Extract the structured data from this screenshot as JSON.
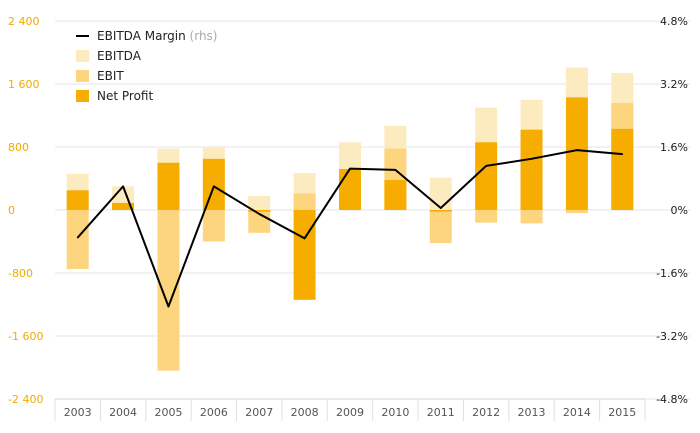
{
  "chart_data": {
    "type": "bar",
    "categories": [
      "2003",
      "2004",
      "2005",
      "2006",
      "2007",
      "2008",
      "2009",
      "2010",
      "2011",
      "2012",
      "2013",
      "2014",
      "2015"
    ],
    "y_left": {
      "ticks": [
        2400,
        1600,
        800,
        0,
        -800,
        -1600,
        -2400
      ],
      "tick_labels": [
        "2 400",
        "1 600",
        "800",
        "0",
        "-800",
        "-1 600",
        "-2 400"
      ],
      "range": [
        -2400,
        2400
      ]
    },
    "y_right": {
      "ticks": [
        4.8,
        3.2,
        1.6,
        0,
        -1.6,
        -3.2,
        -4.8
      ],
      "tick_labels": [
        "4.8%",
        "3.2%",
        "1.6%",
        "0%",
        "-1.6%",
        "-3.2%",
        "-4.8%"
      ],
      "range": [
        -4.8,
        4.8
      ]
    },
    "series": [
      {
        "name": "EBITDA",
        "kind": "bar",
        "color": "#fdebc0",
        "values": [
          460,
          300,
          780,
          790,
          180,
          470,
          860,
          1070,
          410,
          1300,
          1400,
          1810,
          1740
        ]
      },
      {
        "name": "EBIT",
        "kind": "bar",
        "color": "#fdd57f",
        "values": [
          -750,
          60,
          -2040,
          -400,
          -290,
          210,
          520,
          780,
          -420,
          -160,
          -170,
          -40,
          1360
        ]
      },
      {
        "name": "Net Profit",
        "kind": "bar",
        "color": "#f7ad00",
        "values": [
          250,
          90,
          600,
          650,
          -20,
          -1140,
          520,
          380,
          -20,
          860,
          1020,
          1430,
          1030
        ]
      },
      {
        "name": "EBITDA Margin",
        "name_suffix": "(rhs)",
        "kind": "line",
        "axis": "right",
        "color": "#000000",
        "values": [
          -0.7,
          0.6,
          -2.45,
          0.6,
          -0.1,
          -0.72,
          1.05,
          1.02,
          0.05,
          1.12,
          1.3,
          1.52,
          1.42
        ]
      }
    ],
    "legend": {
      "placement": "top-left",
      "order": [
        "EBITDA Margin",
        "EBITDA",
        "EBIT",
        "Net Profit"
      ]
    },
    "grid": true
  }
}
